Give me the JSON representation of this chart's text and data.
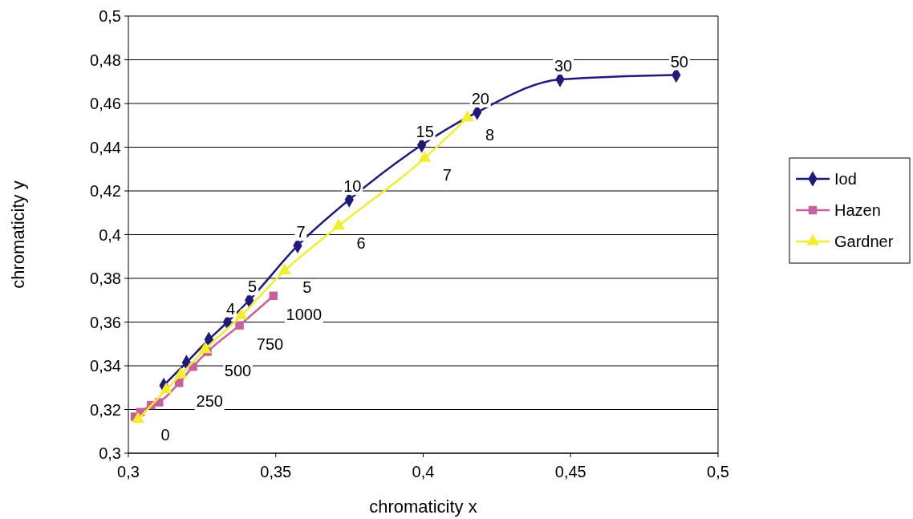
{
  "chart_data": {
    "type": "line",
    "xlabel": "chromaticity x",
    "ylabel": "chromaticity y",
    "xlim": [
      0.3,
      0.5
    ],
    "ylim": [
      0.3,
      0.5
    ],
    "xticks": [
      {
        "value": 0.3,
        "label": "0,3"
      },
      {
        "value": 0.35,
        "label": "0,35"
      },
      {
        "value": 0.4,
        "label": "0,4"
      },
      {
        "value": 0.45,
        "label": "0,45"
      },
      {
        "value": 0.5,
        "label": "0,5"
      }
    ],
    "yticks": [
      {
        "value": 0.3,
        "label": "0,3"
      },
      {
        "value": 0.32,
        "label": "0,32"
      },
      {
        "value": 0.34,
        "label": "0,34"
      },
      {
        "value": 0.36,
        "label": "0,36"
      },
      {
        "value": 0.38,
        "label": "0,38"
      },
      {
        "value": 0.4,
        "label": "0,4"
      },
      {
        "value": 0.42,
        "label": "0,42"
      },
      {
        "value": 0.44,
        "label": "0,44"
      },
      {
        "value": 0.46,
        "label": "0,46"
      },
      {
        "value": 0.48,
        "label": "0,48"
      },
      {
        "value": 0.5,
        "label": "0,5"
      }
    ],
    "grid": "y",
    "legend": "right",
    "line_style": "solid",
    "series": [
      {
        "name": "Iod",
        "color": "#1f1a7a",
        "marker": "diamond",
        "x": [
          0.312,
          0.3197,
          0.3273,
          0.3336,
          0.341,
          0.3574,
          0.3749,
          0.3995,
          0.4183,
          0.4464,
          0.4858
        ],
        "values": [
          0.331,
          0.3415,
          0.352,
          0.36,
          0.37,
          0.395,
          0.416,
          0.441,
          0.456,
          0.471,
          0.473
        ]
      },
      {
        "name": "Hazen",
        "color": "#c8609e",
        "marker": "square",
        "x": [
          0.3022,
          0.3041,
          0.3077,
          0.3104,
          0.3172,
          0.3219,
          0.3268,
          0.3377,
          0.3492
        ],
        "values": [
          0.3167,
          0.3188,
          0.322,
          0.3233,
          0.3322,
          0.3396,
          0.3464,
          0.3585,
          0.372
        ]
      },
      {
        "name": "Gardner",
        "color": "#f2ee2e",
        "marker": "triangle",
        "x": [
          0.3033,
          0.3128,
          0.3178,
          0.326,
          0.3383,
          0.353,
          0.3713,
          0.4005,
          0.415
        ],
        "values": [
          0.3155,
          0.329,
          0.336,
          0.3475,
          0.363,
          0.3835,
          0.404,
          0.435,
          0.4535
        ]
      }
    ],
    "annotations": [
      {
        "text": "50",
        "x": 0.4858,
        "y": 0.473
      },
      {
        "text": "30",
        "x": 0.4464,
        "y": 0.471
      },
      {
        "text": "20",
        "x": 0.4183,
        "y": 0.456
      },
      {
        "text": "15",
        "x": 0.3995,
        "y": 0.441
      },
      {
        "text": "10",
        "x": 0.3749,
        "y": 0.416
      },
      {
        "text": "7",
        "x": 0.3574,
        "y": 0.395
      },
      {
        "text": "5",
        "x": 0.341,
        "y": 0.37
      },
      {
        "text": "4",
        "x": 0.3336,
        "y": 0.36
      },
      {
        "text": "8",
        "x": 0.415,
        "y": 0.4535
      },
      {
        "text": "7",
        "x": 0.4005,
        "y": 0.435
      },
      {
        "text": "6",
        "x": 0.3713,
        "y": 0.404
      },
      {
        "text": "5",
        "x": 0.353,
        "y": 0.3835
      },
      {
        "text": "1000",
        "x": 0.3492,
        "y": 0.372
      },
      {
        "text": "750",
        "x": 0.3377,
        "y": 0.3585
      },
      {
        "text": "500",
        "x": 0.3268,
        "y": 0.3464
      },
      {
        "text": "250",
        "x": 0.3172,
        "y": 0.3322
      },
      {
        "text": "0",
        "x": 0.3022,
        "y": 0.3167
      }
    ]
  }
}
